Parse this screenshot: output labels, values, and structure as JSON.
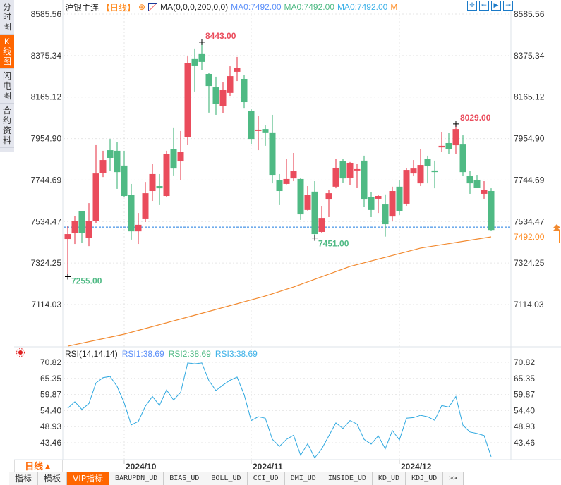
{
  "sidebar": {
    "tabs": [
      "分时图",
      "K线图",
      "闪电图",
      "合约资料"
    ],
    "active": 1
  },
  "header": {
    "symbol": "沪银主连",
    "period": "【日线】",
    "add_icon": "⊕",
    "indicator": "MA(0,0,0,200,0,0)",
    "ma_values": [
      {
        "label": "MA0:7492.00",
        "color": "#5b8ff9"
      },
      {
        "label": "MA0:7492.00",
        "color": "#4fba84"
      },
      {
        "label": "MA0:7492.00",
        "color": "#3fb2e8"
      }
    ],
    "more": "M"
  },
  "toolbar": {
    "icons": [
      "crosshair-icon",
      "zoom-range-icon",
      "play-range-icon",
      "exit-icon"
    ]
  },
  "colors": {
    "up": "#ea4c5c",
    "down": "#4fba84",
    "ma": "#f28a30",
    "rsi": "#2ea8e0",
    "last": "#1a7ae0",
    "accent": "#ff6600"
  },
  "main_axis": {
    "labels": [
      "8585.56",
      "8375.34",
      "8165.12",
      "7954.90",
      "7744.69",
      "7534.47",
      "7324.25",
      "7114.03"
    ],
    "max": 8585.56,
    "min": 7114.03
  },
  "last_price": "7492.00",
  "annotations": {
    "high": "8443.00",
    "high2": "8029.00",
    "low": "7255.00",
    "low2": "7451.00"
  },
  "chart_data": {
    "type": "candlestick",
    "candles": [
      [
        7446,
        7514,
        7255,
        7471
      ],
      [
        7478,
        7564,
        7421,
        7539
      ],
      [
        7586,
        7589,
        7425,
        7475
      ],
      [
        7450,
        7628,
        7410,
        7536
      ],
      [
        7536,
        7925,
        7525,
        7778
      ],
      [
        7782,
        7893,
        7760,
        7846
      ],
      [
        7896,
        7953,
        7789,
        7857
      ],
      [
        7893,
        7939,
        7700,
        7785
      ],
      [
        7818,
        7893,
        7660,
        7664
      ],
      [
        7671,
        7725,
        7443,
        7485
      ],
      [
        7485,
        7578,
        7421,
        7518
      ],
      [
        7550,
        7735,
        7532,
        7678
      ],
      [
        7689,
        7828,
        7639,
        7775
      ],
      [
        7714,
        7775,
        7618,
        7703
      ],
      [
        7664,
        7893,
        7660,
        7878
      ],
      [
        7900,
        8011,
        7768,
        7803
      ],
      [
        7839,
        7993,
        7743,
        7886
      ],
      [
        7961,
        8371,
        7923,
        8336
      ],
      [
        8361,
        8411,
        8193,
        8325
      ],
      [
        8386,
        8443,
        8300,
        8343
      ],
      [
        8282,
        8289,
        8086,
        8221
      ],
      [
        8214,
        8268,
        8075,
        8132
      ],
      [
        8121,
        8239,
        8082,
        8203
      ],
      [
        8186,
        8321,
        8171,
        8271
      ],
      [
        8293,
        8368,
        8246,
        8311
      ],
      [
        8257,
        8278,
        8110,
        8139
      ],
      [
        8093,
        8103,
        7928,
        7953
      ],
      [
        7993,
        8068,
        7896,
        8000
      ],
      [
        8003,
        8021,
        7918,
        7986
      ],
      [
        7986,
        8075,
        7728,
        7771
      ],
      [
        7746,
        7775,
        7618,
        7689
      ],
      [
        7725,
        7853,
        7723,
        7750
      ],
      [
        7753,
        7882,
        7739,
        7789
      ],
      [
        7750,
        7757,
        7543,
        7571
      ],
      [
        7593,
        7714,
        7590,
        7671
      ],
      [
        7686,
        7739,
        7451,
        7471
      ],
      [
        7482,
        7614,
        7475,
        7553
      ],
      [
        7646,
        7696,
        7557,
        7678
      ],
      [
        7711,
        7850,
        7703,
        7807
      ],
      [
        7839,
        7852,
        7732,
        7753
      ],
      [
        7757,
        7836,
        7718,
        7832
      ],
      [
        7793,
        7825,
        7707,
        7800
      ],
      [
        7843,
        7868,
        7607,
        7646
      ],
      [
        7657,
        7682,
        7557,
        7593
      ],
      [
        7650,
        7671,
        7578,
        7664
      ],
      [
        7621,
        7672,
        7458,
        7521
      ],
      [
        7560,
        7711,
        7536,
        7689
      ],
      [
        7711,
        7743,
        7568,
        7586
      ],
      [
        7625,
        7807,
        7614,
        7796
      ],
      [
        7778,
        7846,
        7764,
        7803
      ],
      [
        7728,
        7903,
        7714,
        7821
      ],
      [
        7850,
        7868,
        7728,
        7814
      ],
      [
        7793,
        7843,
        7703,
        7785
      ],
      [
        7910,
        7989,
        7889,
        7918
      ],
      [
        7932,
        7982,
        7875,
        7903
      ],
      [
        7921,
        8029,
        7878,
        8003
      ],
      [
        7928,
        7971,
        7764,
        7785
      ],
      [
        7764,
        7789,
        7675,
        7728
      ],
      [
        7743,
        7771,
        7705,
        7707
      ],
      [
        7675,
        7739,
        7650,
        7693
      ],
      [
        7689,
        7703,
        7488,
        7492
      ]
    ],
    "ma200": [
      [
        0,
        6903
      ],
      [
        8,
        6964
      ],
      [
        18,
        7060
      ],
      [
        28,
        7157
      ],
      [
        32,
        7203
      ],
      [
        40,
        7307
      ],
      [
        50,
        7400
      ],
      [
        60,
        7457
      ]
    ],
    "x_ticks": [
      {
        "index": 8,
        "label": "2024/10"
      },
      {
        "index": 26,
        "label": "2024/11"
      },
      {
        "index": 47,
        "label": "2024/12"
      }
    ],
    "rsi": {
      "title": "RSI(14,14,14)",
      "labels": [
        {
          "text": "RSI1:38.69",
          "color": "#5b8ff9"
        },
        {
          "text": "RSI2:38.69",
          "color": "#4fba84"
        },
        {
          "text": "RSI3:38.69",
          "color": "#3fb2e8"
        }
      ],
      "axis": [
        "70.82",
        "65.35",
        "59.87",
        "54.40",
        "48.93",
        "43.46"
      ],
      "max": 70.82,
      "values": [
        55.2,
        57.4,
        54.8,
        56.8,
        63.8,
        65.6,
        66.0,
        62.6,
        57.0,
        49.5,
        50.7,
        55.9,
        59.2,
        56.2,
        61.4,
        58.0,
        60.6,
        70.6,
        70.3,
        70.6,
        64.6,
        61.2,
        63.1,
        64.7,
        65.8,
        59.8,
        51.0,
        52.3,
        51.8,
        44.6,
        42.2,
        44.6,
        46.0,
        39.2,
        43.1,
        38.3,
        41.4,
        45.8,
        50.2,
        48.3,
        51.0,
        49.8,
        44.6,
        43.0,
        45.8,
        41.4,
        47.6,
        44.4,
        51.8,
        52.0,
        52.8,
        52.3,
        51.1,
        56.1,
        55.6,
        59.2,
        49.4,
        47.1,
        46.6,
        45.9,
        38.69
      ]
    }
  },
  "footer": {
    "period": "日线▲",
    "tabs": [
      "指标",
      "模板",
      "VIP指标",
      "BARUPDN_UD",
      "BIAS_UD",
      "BOLL_UD",
      "CCI_UD",
      "DMI_UD",
      "INSIDE_UD",
      "KD_UD",
      "KDJ_UD",
      ">>"
    ],
    "active": 2
  }
}
